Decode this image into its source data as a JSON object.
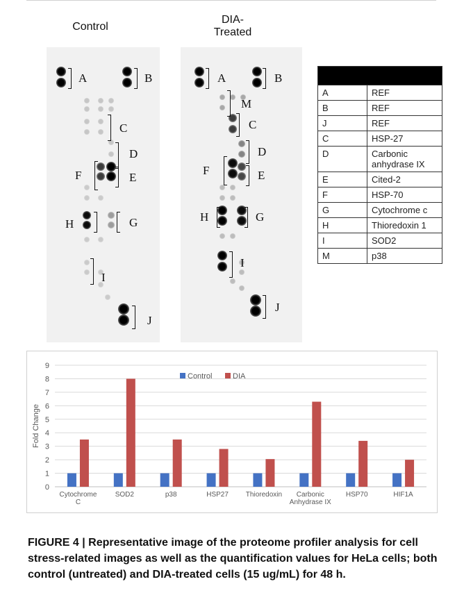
{
  "blots": {
    "control": {
      "title": "Control"
    },
    "dia": {
      "title_line1": "DIA-",
      "title_line2": "Treated"
    },
    "labels": [
      "A",
      "B",
      "C",
      "D",
      "E",
      "F",
      "G",
      "H",
      "I",
      "J",
      "M"
    ]
  },
  "key_table": {
    "rows": [
      {
        "code": "A",
        "name": "REF"
      },
      {
        "code": "B",
        "name": "REF"
      },
      {
        "code": "J",
        "name": "REF"
      },
      {
        "code": "C",
        "name": "HSP-27"
      },
      {
        "code": "D",
        "name_line1": "Carbonic",
        "name_line2": "anhydrase IX"
      },
      {
        "code": "E",
        "name": "Cited-2"
      },
      {
        "code": "F",
        "name": "HSP-70"
      },
      {
        "code": "G",
        "name": "Cytochrome c"
      },
      {
        "code": "H",
        "name": "Thioredoxin 1"
      },
      {
        "code": "I",
        "name": "SOD2"
      },
      {
        "code": "M",
        "name": "p38"
      }
    ]
  },
  "chart_data": {
    "type": "bar",
    "categories": [
      [
        "Cytochrome",
        "C"
      ],
      [
        "SOD2"
      ],
      [
        "p38"
      ],
      [
        "HSP27"
      ],
      [
        "Thioredoxin"
      ],
      [
        "Carbonic",
        "Anhydrase IX"
      ],
      [
        "HSP70"
      ],
      [
        "HIF1A"
      ]
    ],
    "series": [
      {
        "name": "Control",
        "color": "#4472c4",
        "values": [
          1,
          1,
          1,
          1,
          1,
          1,
          1,
          1
        ]
      },
      {
        "name": "DIA",
        "color": "#c0504d",
        "values": [
          3.5,
          8,
          3.5,
          2.8,
          2.05,
          6.3,
          3.4,
          2.0
        ]
      }
    ],
    "ylabel": "Fold Change",
    "ylim": [
      0,
      9
    ],
    "yticks": [
      0,
      1,
      2,
      3,
      4,
      5,
      6,
      7,
      8,
      9
    ],
    "grid": true,
    "legend_position": "top"
  },
  "caption": {
    "bold": "FIGURE 4 | Representative image of the proteome profiler analysis for cell stress-related images as well as the quantification values for HeLa cells; both control (untreated) and DIA-treated cells (15 ug/mL) for 48 h."
  }
}
